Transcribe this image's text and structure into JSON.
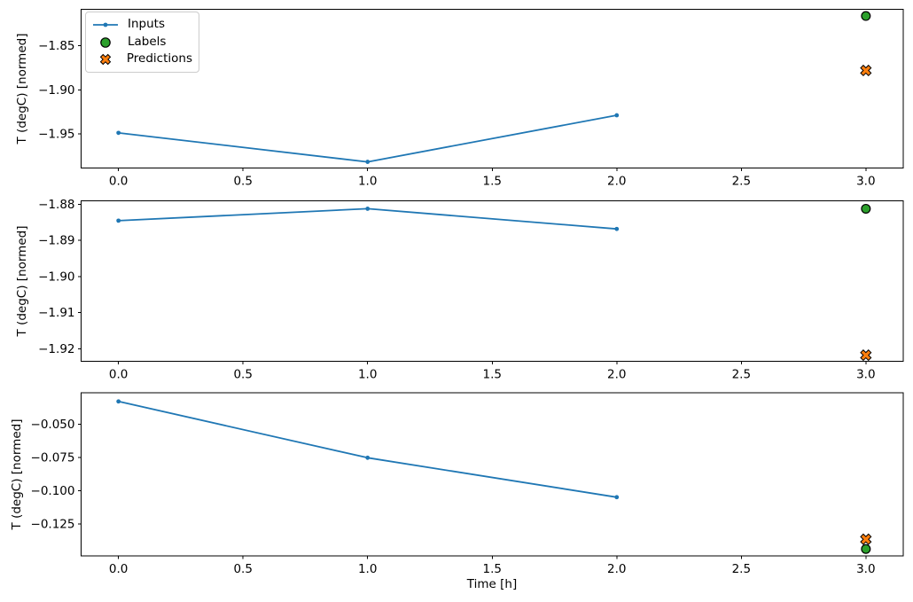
{
  "figure": {
    "background": "#ffffff"
  },
  "colors": {
    "inputs": "#1f77b4",
    "labels": "#2ca02c",
    "predictions": "#ff7f0e",
    "marker_edge": "#000000",
    "spine": "#000000",
    "text": "#000000",
    "legend_border": "#cccccc"
  },
  "legend": {
    "position": "upper-left-first-subplot",
    "items": [
      {
        "label": "Inputs",
        "marker": "line-with-dot"
      },
      {
        "label": "Labels",
        "marker": "filled-circle"
      },
      {
        "label": "Predictions",
        "marker": "bold-x"
      }
    ]
  },
  "chart_data": {
    "type": "line",
    "title": "",
    "xlabel": "Time [h]",
    "ylabel": "T (degC) [normed]",
    "grid": false,
    "xlim": [
      -0.15,
      3.15
    ],
    "x_ticks": [
      0.0,
      0.5,
      1.0,
      1.5,
      2.0,
      2.5,
      3.0
    ],
    "x_tick_labels": [
      "0.0",
      "0.5",
      "1.0",
      "1.5",
      "2.0",
      "2.5",
      "3.0"
    ],
    "legend_entries": [
      "Inputs",
      "Labels",
      "Predictions"
    ],
    "subplots": [
      {
        "ylim": [
          -1.989,
          -1.8084
        ],
        "y_ticks": [
          -1.85,
          -1.9,
          -1.95
        ],
        "y_tick_labels": [
          "−1.85",
          "−1.90",
          "−1.95"
        ],
        "series": [
          {
            "name": "Inputs",
            "type": "line",
            "x": [
              0,
              1,
              2
            ],
            "y": [
              -1.949,
              -1.982,
              -1.929
            ]
          },
          {
            "name": "Labels",
            "type": "scatter",
            "marker": "circle",
            "x": [
              3
            ],
            "y": [
              -1.816
            ]
          },
          {
            "name": "Predictions",
            "type": "scatter",
            "marker": "X",
            "x": [
              3
            ],
            "y": [
              -1.878
            ]
          }
        ]
      },
      {
        "ylim": [
          -1.9235,
          -1.879
        ],
        "y_ticks": [
          -1.88,
          -1.89,
          -1.9,
          -1.91,
          -1.92
        ],
        "y_tick_labels": [
          "−1.88",
          "−1.89",
          "−1.90",
          "−1.91",
          "−1.92"
        ],
        "series": [
          {
            "name": "Inputs",
            "type": "line",
            "x": [
              0,
              1,
              2
            ],
            "y": [
              -1.8845,
              -1.8812,
              -1.8868
            ]
          },
          {
            "name": "Labels",
            "type": "scatter",
            "marker": "circle",
            "x": [
              3
            ],
            "y": [
              -1.8812
            ]
          },
          {
            "name": "Predictions",
            "type": "scatter",
            "marker": "X",
            "x": [
              3
            ],
            "y": [
              -1.9218
            ]
          }
        ]
      },
      {
        "ylim": [
          -0.149,
          -0.0265
        ],
        "y_ticks": [
          -0.05,
          -0.075,
          -0.1,
          -0.125
        ],
        "y_tick_labels": [
          "−0.050",
          "−0.075",
          "−0.100",
          "−0.125"
        ],
        "series": [
          {
            "name": "Inputs",
            "type": "line",
            "x": [
              0,
              1,
              2
            ],
            "y": [
              -0.033,
              -0.0753,
              -0.1049
            ]
          },
          {
            "name": "Predictions",
            "type": "scatter",
            "marker": "X",
            "x": [
              3
            ],
            "y": [
              -0.1365
            ]
          },
          {
            "name": "Labels",
            "type": "scatter",
            "marker": "circle",
            "x": [
              3
            ],
            "y": [
              -0.1438
            ]
          }
        ]
      }
    ]
  }
}
